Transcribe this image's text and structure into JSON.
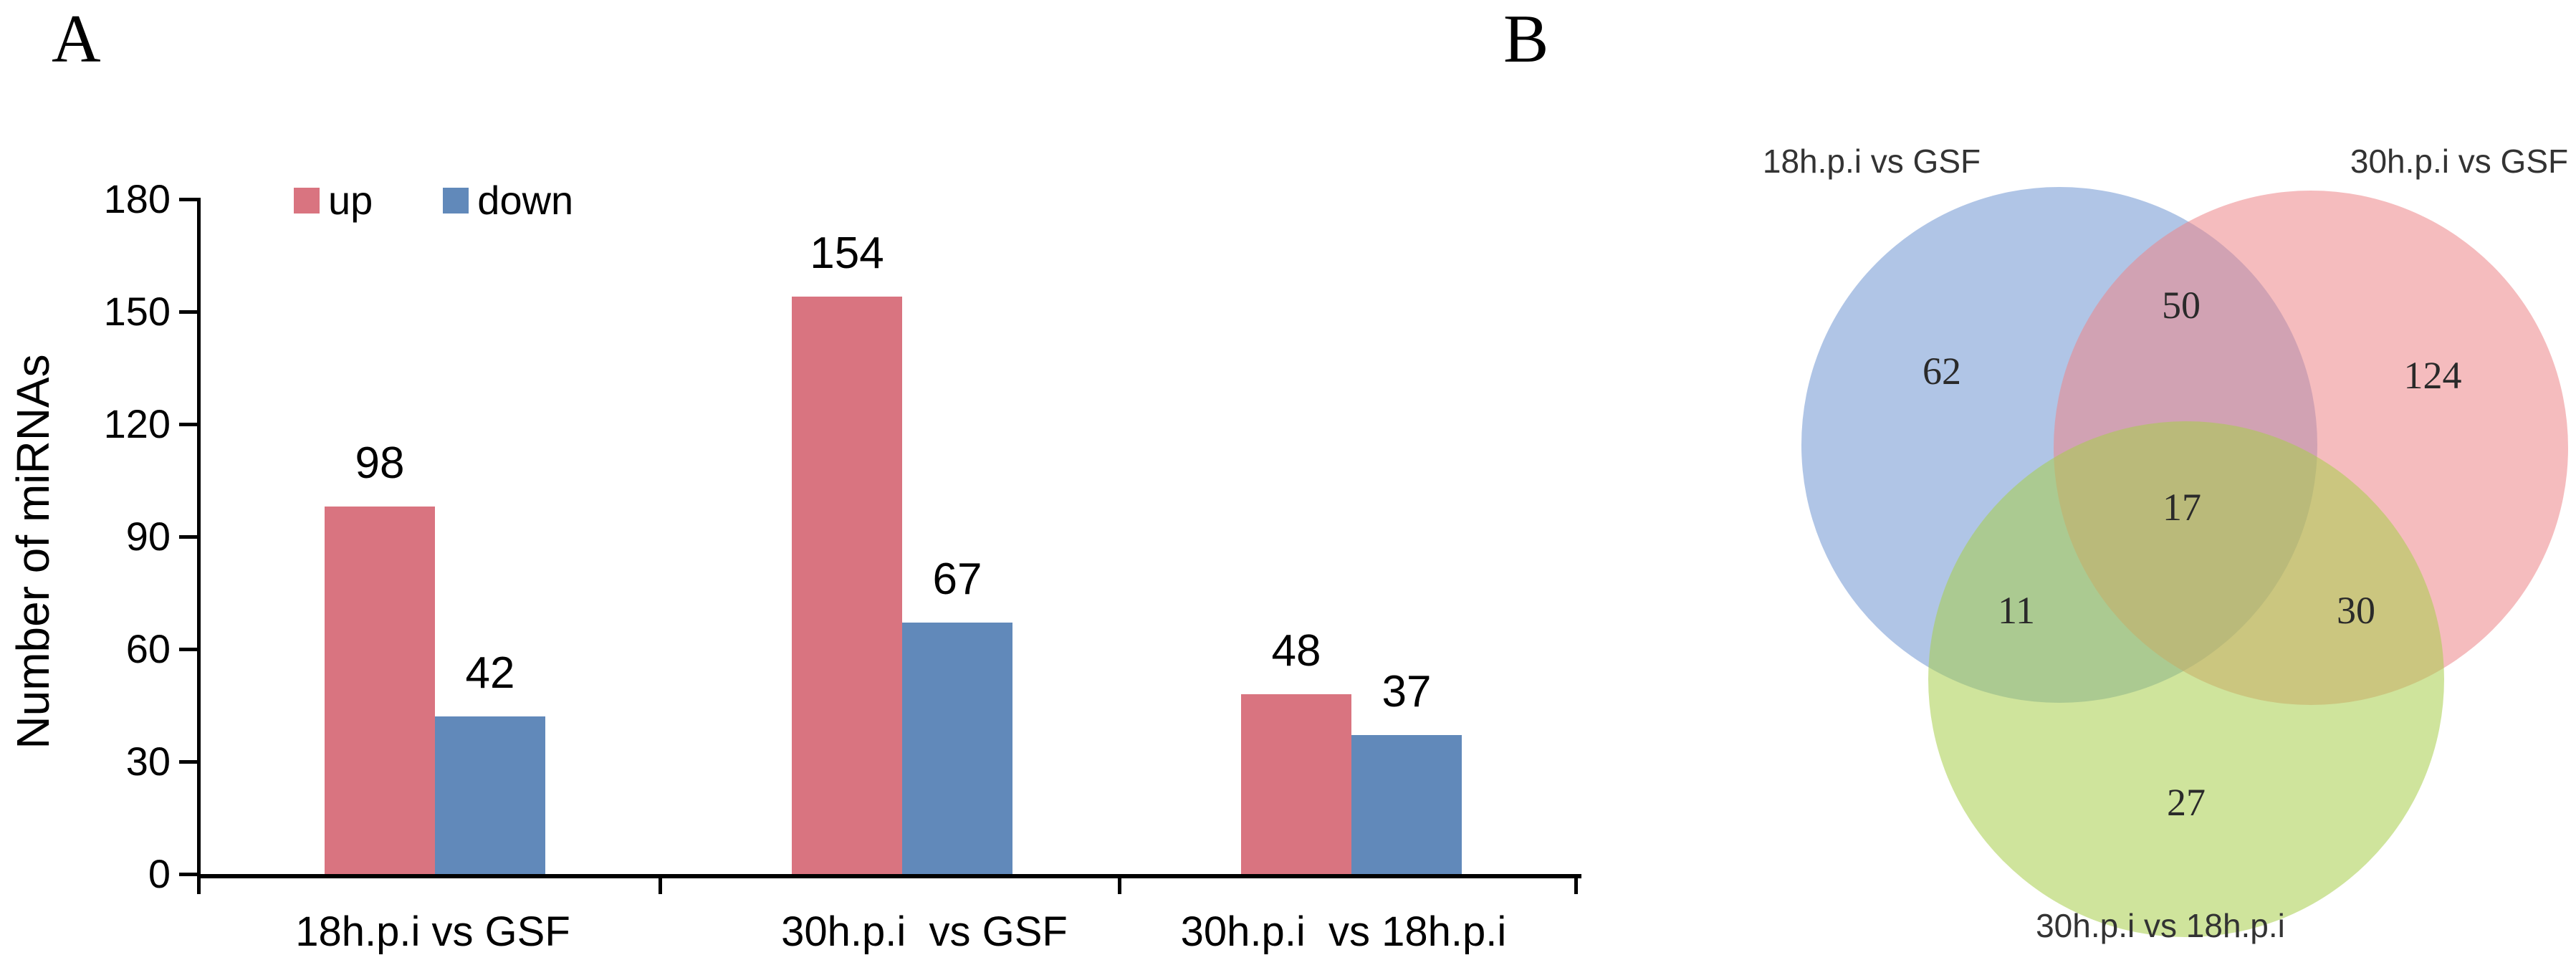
{
  "panels": {
    "a_label": "A",
    "b_label": "B"
  },
  "chart_data": [
    {
      "type": "bar",
      "title": "",
      "xlabel": "",
      "ylabel": "Number of miRNAs",
      "categories": [
        "18h.p.i vs GSF",
        "30h.p.i  vs GSF",
        "30h.p.i  vs 18h.p.i"
      ],
      "series": [
        {
          "name": "up",
          "color": "#d97480",
          "values": [
            98,
            154,
            48
          ]
        },
        {
          "name": "down",
          "color": "#6189ba",
          "values": [
            42,
            67,
            37
          ]
        }
      ],
      "ylim": [
        0,
        180
      ],
      "yticks": [
        0,
        30,
        60,
        90,
        120,
        150,
        180
      ],
      "grid": false,
      "legend_position": "top-inside"
    },
    {
      "type": "venn",
      "sets": [
        "18h.p.i vs GSF",
        "30h.p.i vs GSF",
        "30h.p.i vs 18h.p.i"
      ],
      "counts": {
        "set1_only": 62,
        "set2_only": 124,
        "set3_only": 27,
        "set1_set2": 50,
        "set1_set3": 11,
        "set2_set3": 30,
        "all_three": 17
      },
      "set_colors": {
        "set1": "rgba(111,150,210,0.55)",
        "set2": "rgba(237,133,137,0.55)",
        "set3": "rgba(168,206,75,0.55)"
      }
    }
  ]
}
